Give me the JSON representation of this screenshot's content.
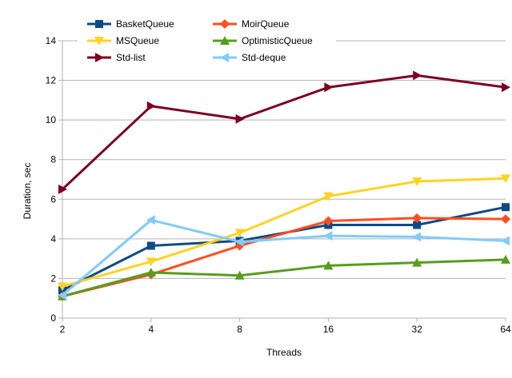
{
  "chart_data": {
    "type": "line",
    "title": "",
    "xlabel": "Threads",
    "ylabel": "Duration, sec",
    "categories": [
      "2",
      "4",
      "8",
      "16",
      "32",
      "64"
    ],
    "ylim": [
      0,
      14
    ],
    "yticks": [
      0,
      2,
      4,
      6,
      8,
      10,
      12,
      14
    ],
    "grid": "horizontal",
    "legend_position": "top",
    "series": [
      {
        "name": "BasketQueue",
        "color": "#0e4a86",
        "marker": "square",
        "values": [
          1.4,
          3.65,
          3.9,
          4.7,
          4.7,
          5.6
        ]
      },
      {
        "name": "MoirQueue",
        "color": "#ff4d1f",
        "marker": "diamond",
        "values": [
          1.1,
          2.2,
          3.65,
          4.9,
          5.05,
          5.0
        ]
      },
      {
        "name": "MSQueue",
        "color": "#ffd320",
        "marker": "triangle-down",
        "values": [
          1.6,
          2.85,
          4.3,
          6.15,
          6.9,
          7.05
        ]
      },
      {
        "name": "OptimisticQueue",
        "color": "#579d1c",
        "marker": "triangle-up",
        "values": [
          1.1,
          2.3,
          2.15,
          2.65,
          2.8,
          2.95
        ]
      },
      {
        "name": "Std-list",
        "color": "#7e0021",
        "marker": "triangle-right",
        "values": [
          6.5,
          10.7,
          10.05,
          11.65,
          12.25,
          11.65
        ]
      },
      {
        "name": "Std-deque",
        "color": "#83caff",
        "marker": "triangle-left",
        "values": [
          1.15,
          4.95,
          3.85,
          4.15,
          4.1,
          3.9
        ]
      }
    ]
  }
}
